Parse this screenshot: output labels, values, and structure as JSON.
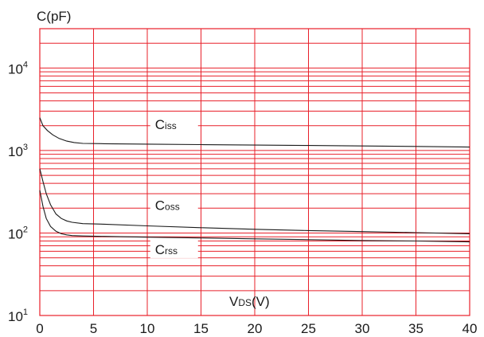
{
  "chart_data": {
    "type": "line",
    "ylabel": "C(pF)",
    "xlabel": {
      "main": "V",
      "sub": "DS",
      "unit": "(V)"
    },
    "x_ticks": [
      "0",
      "5",
      "10",
      "15",
      "20",
      "25",
      "30",
      "35",
      "40"
    ],
    "y_ticks": [
      {
        "base": "10",
        "exp": "1",
        "value": 10
      },
      {
        "base": "10",
        "exp": "2",
        "value": 100
      },
      {
        "base": "10",
        "exp": "3",
        "value": 1000
      },
      {
        "base": "10",
        "exp": "4",
        "value": 10000
      }
    ],
    "xlim": [
      0,
      40
    ],
    "ylim": [
      10,
      30000
    ],
    "y_scale": "log",
    "grid": true,
    "grid_color": "#e8202a",
    "line_color": "#1a1a1a",
    "series": [
      {
        "name": "Ciss",
        "label_main": "C",
        "label_sub": "iss",
        "x": [
          0,
          0.3,
          0.7,
          1.2,
          1.8,
          2.5,
          3.2,
          4,
          6,
          10,
          15,
          20,
          25,
          30,
          35,
          40
        ],
        "y": [
          2500,
          2000,
          1750,
          1550,
          1400,
          1300,
          1250,
          1220,
          1210,
          1195,
          1180,
          1165,
          1150,
          1135,
          1120,
          1100
        ]
      },
      {
        "name": "Coss",
        "label_main": "C",
        "label_sub": "oss",
        "x": [
          0,
          0.3,
          0.6,
          1.0,
          1.5,
          2.0,
          2.5,
          3.0,
          4.0,
          6,
          10,
          15,
          20,
          25,
          30,
          35,
          40
        ],
        "y": [
          600,
          420,
          300,
          220,
          170,
          150,
          140,
          135,
          130,
          128,
          122,
          116,
          111,
          107,
          104,
          101,
          98
        ]
      },
      {
        "name": "Crss",
        "label_main": "C",
        "label_sub": "rss",
        "x": [
          0,
          0.3,
          0.6,
          1.0,
          1.5,
          2.0,
          2.5,
          3.0,
          4.0,
          6,
          10,
          15,
          20,
          25,
          30,
          35,
          40
        ],
        "y": [
          330,
          210,
          150,
          120,
          105,
          98,
          95,
          93,
          92,
          91,
          89,
          87,
          85,
          83,
          81,
          80,
          78
        ]
      }
    ]
  }
}
